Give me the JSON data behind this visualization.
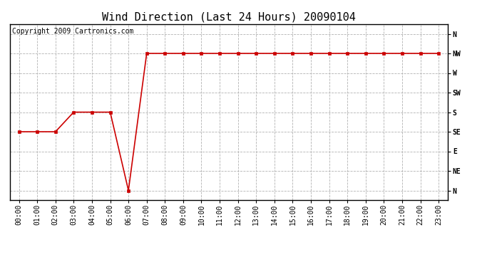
{
  "title": "Wind Direction (Last 24 Hours) 20090104",
  "copyright_text": "Copyright 2009 Cartronics.com",
  "background_color": "#ffffff",
  "line_color": "#cc0000",
  "marker": "s",
  "marker_size": 2.5,
  "grid_color": "#aaaaaa",
  "ytick_labels": [
    "N",
    "NW",
    "W",
    "SW",
    "S",
    "SE",
    "E",
    "NE",
    "N"
  ],
  "ytick_values": [
    8,
    7,
    6,
    5,
    4,
    3,
    2,
    1,
    0
  ],
  "hours": [
    0,
    1,
    2,
    3,
    4,
    5,
    6,
    7,
    8,
    9,
    10,
    11,
    12,
    13,
    14,
    15,
    16,
    17,
    18,
    19,
    20,
    21,
    22,
    23
  ],
  "wind_values": [
    3,
    3,
    3,
    4,
    4,
    4,
    0,
    7,
    7,
    7,
    7,
    7,
    7,
    7,
    7,
    7,
    7,
    7,
    7,
    7,
    7,
    7,
    7,
    7
  ],
  "xlim": [
    -0.5,
    23.5
  ],
  "ylim": [
    -0.5,
    8.5
  ],
  "title_fontsize": 11,
  "axis_label_fontsize": 7,
  "copyright_fontsize": 7
}
